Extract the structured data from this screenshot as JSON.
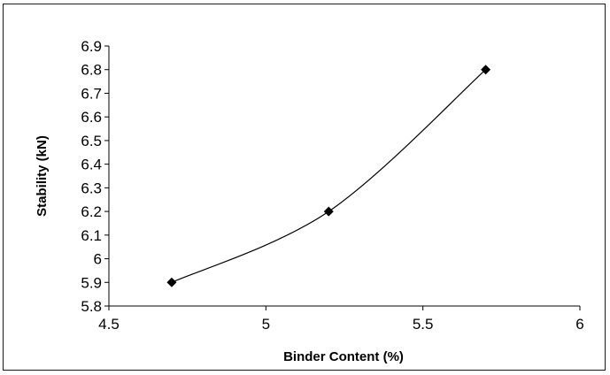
{
  "chart_data": {
    "type": "line",
    "title": "",
    "xlabel": "Binder Content (%)",
    "ylabel": "Stability (kN)",
    "xlim": [
      4.5,
      6
    ],
    "ylim": [
      5.8,
      6.9
    ],
    "x_ticks": [
      "4.5",
      "5",
      "5.5",
      "6"
    ],
    "y_ticks": [
      "5.8",
      "5.9",
      "6",
      "6.1",
      "6.2",
      "6.3",
      "6.4",
      "6.5",
      "6.6",
      "6.7",
      "6.8",
      "6.9"
    ],
    "grid": false,
    "legend": "none",
    "marker": "diamond",
    "line_color": "#000000",
    "series": [
      {
        "x": [
          4.7,
          5.2,
          5.7
        ],
        "y": [
          5.9,
          6.2,
          6.8
        ]
      }
    ]
  }
}
